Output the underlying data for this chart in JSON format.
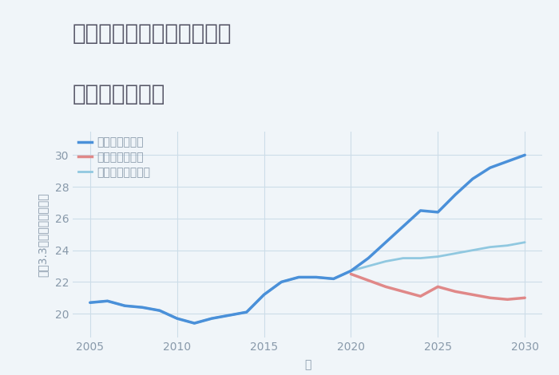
{
  "title_line1": "兵庫県西宮市名塩木之元の",
  "title_line2": "土地の価格推移",
  "xlabel": "年",
  "ylabel": "坪（3.3㎡）単価（万円）",
  "background_color": "#f0f5f9",
  "plot_bg_color": "#f0f5f9",
  "title_color": "#555566",
  "axis_color": "#8899aa",
  "grid_color": "#ccdde8",
  "ylim": [
    18.5,
    31.5
  ],
  "xlim": [
    2004,
    2031
  ],
  "yticks": [
    20,
    22,
    24,
    26,
    28,
    30
  ],
  "xticks": [
    2005,
    2010,
    2015,
    2020,
    2025,
    2030
  ],
  "good_scenario": {
    "label": "グッドシナリオ",
    "color": "#4a90d9",
    "x": [
      2005,
      2006,
      2007,
      2008,
      2009,
      2010,
      2011,
      2012,
      2013,
      2014,
      2015,
      2016,
      2017,
      2018,
      2019,
      2020,
      2021,
      2022,
      2023,
      2024,
      2025,
      2026,
      2027,
      2028,
      2029,
      2030
    ],
    "y": [
      20.7,
      20.8,
      20.5,
      20.4,
      20.2,
      19.7,
      19.4,
      19.7,
      19.9,
      20.1,
      21.2,
      22.0,
      22.3,
      22.3,
      22.2,
      22.7,
      23.5,
      24.5,
      25.5,
      26.5,
      26.4,
      27.5,
      28.5,
      29.2,
      29.6,
      30.0
    ],
    "linewidth": 2.5
  },
  "bad_scenario": {
    "label": "バッドシナリオ",
    "color": "#e08888",
    "x": [
      2020,
      2021,
      2022,
      2023,
      2024,
      2025,
      2026,
      2027,
      2028,
      2029,
      2030
    ],
    "y": [
      22.5,
      22.1,
      21.7,
      21.4,
      21.1,
      21.7,
      21.4,
      21.2,
      21.0,
      20.9,
      21.0
    ],
    "linewidth": 2.5
  },
  "normal_scenario": {
    "label": "ノーマルシナリオ",
    "color": "#90c8e0",
    "x": [
      2005,
      2006,
      2007,
      2008,
      2009,
      2010,
      2011,
      2012,
      2013,
      2014,
      2015,
      2016,
      2017,
      2018,
      2019,
      2020,
      2021,
      2022,
      2023,
      2024,
      2025,
      2026,
      2027,
      2028,
      2029,
      2030
    ],
    "y": [
      20.7,
      20.8,
      20.5,
      20.4,
      20.2,
      19.7,
      19.4,
      19.7,
      19.9,
      20.1,
      21.2,
      22.0,
      22.3,
      22.3,
      22.2,
      22.7,
      23.0,
      23.3,
      23.5,
      23.5,
      23.6,
      23.8,
      24.0,
      24.2,
      24.3,
      24.5
    ],
    "linewidth": 2.0
  },
  "title_fontsize": 20,
  "label_fontsize": 10,
  "tick_fontsize": 10,
  "legend_fontsize": 10
}
